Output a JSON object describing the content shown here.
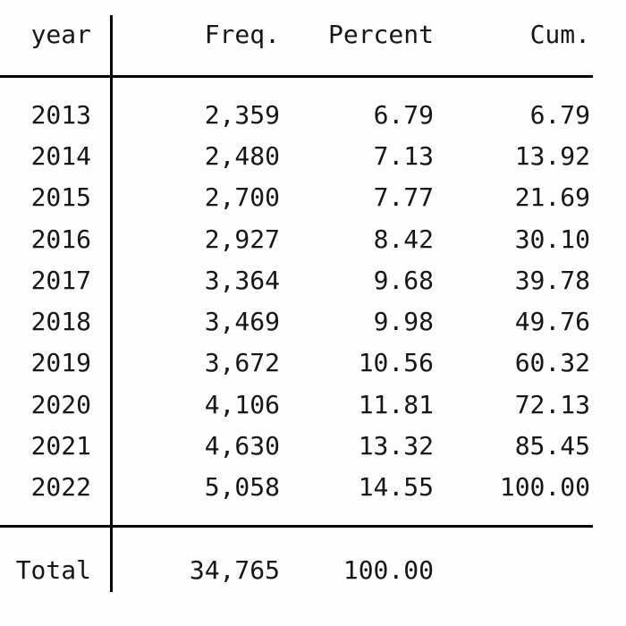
{
  "colors": {
    "background": "#fdfdfd",
    "text": "#161616",
    "rule": "#000000"
  },
  "table": {
    "columns": {
      "year": "year",
      "freq": "Freq.",
      "percent": "Percent",
      "cum": "Cum."
    },
    "rows": [
      {
        "year": "2013",
        "freq": "2,359",
        "percent": "6.79",
        "cum": "6.79"
      },
      {
        "year": "2014",
        "freq": "2,480",
        "percent": "7.13",
        "cum": "13.92"
      },
      {
        "year": "2015",
        "freq": "2,700",
        "percent": "7.77",
        "cum": "21.69"
      },
      {
        "year": "2016",
        "freq": "2,927",
        "percent": "8.42",
        "cum": "30.10"
      },
      {
        "year": "2017",
        "freq": "3,364",
        "percent": "9.68",
        "cum": "39.78"
      },
      {
        "year": "2018",
        "freq": "3,469",
        "percent": "9.98",
        "cum": "49.76"
      },
      {
        "year": "2019",
        "freq": "3,672",
        "percent": "10.56",
        "cum": "60.32"
      },
      {
        "year": "2020",
        "freq": "4,106",
        "percent": "11.81",
        "cum": "72.13"
      },
      {
        "year": "2021",
        "freq": "4,630",
        "percent": "13.32",
        "cum": "85.45"
      },
      {
        "year": "2022",
        "freq": "5,058",
        "percent": "14.55",
        "cum": "100.00"
      }
    ],
    "total": {
      "label": "Total",
      "freq": "34,765",
      "percent": "100.00",
      "cum": ""
    }
  }
}
